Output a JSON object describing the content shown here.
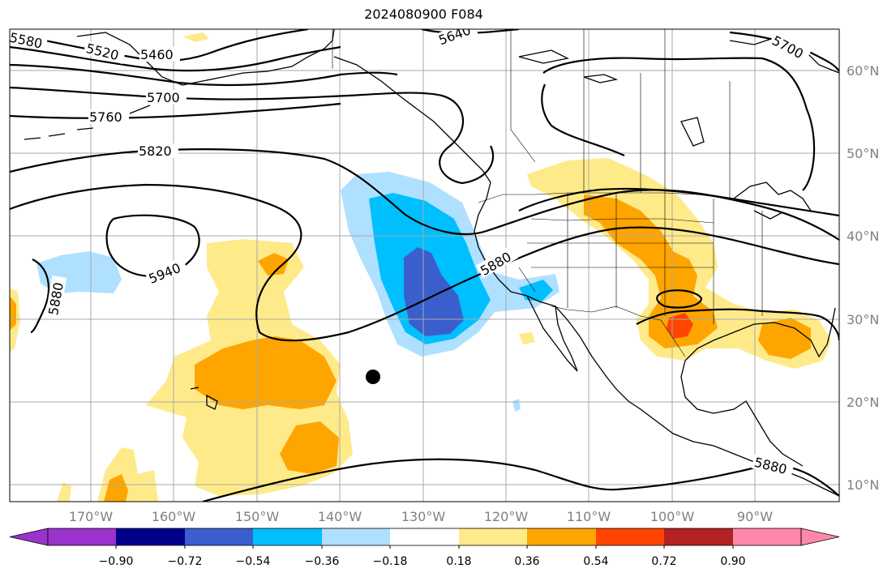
{
  "title": "2024080900 F084",
  "lat_labels": [
    "60°N",
    "50°N",
    "40°N",
    "30°N",
    "20°N",
    "10°N"
  ],
  "lon_labels": [
    "170°W",
    "160°W",
    "150°W",
    "140°W",
    "130°W",
    "120°W",
    "110°W",
    "100°W",
    "90°W"
  ],
  "contour_labels": [
    "5580",
    "5520",
    "5460",
    "5640",
    "5700",
    "5700",
    "5760",
    "5820",
    "5940",
    "5880",
    "5880",
    "5880"
  ],
  "colorbar": {
    "tick_labels": [
      "−0.90",
      "−0.72",
      "−0.54",
      "−0.36",
      "−0.18",
      "0.18",
      "0.36",
      "0.54",
      "0.72",
      "0.90"
    ],
    "colors": [
      "#9933cc",
      "#00008b",
      "#3a5fcd",
      "#00bfff",
      "#b0e0ff",
      "#ffffff",
      "#ffea8a",
      "#ffa500",
      "#ff4500",
      "#b22222",
      "#ff88aa"
    ]
  },
  "colors": {
    "neg_light": "#b0e0ff",
    "neg_mid": "#00bfff",
    "neg_dark": "#3a5fcd",
    "pos_light": "#ffea8a",
    "pos_mid": "#ffa500",
    "pos_dark": "#ff4500"
  },
  "marker": "storm-center-dot"
}
